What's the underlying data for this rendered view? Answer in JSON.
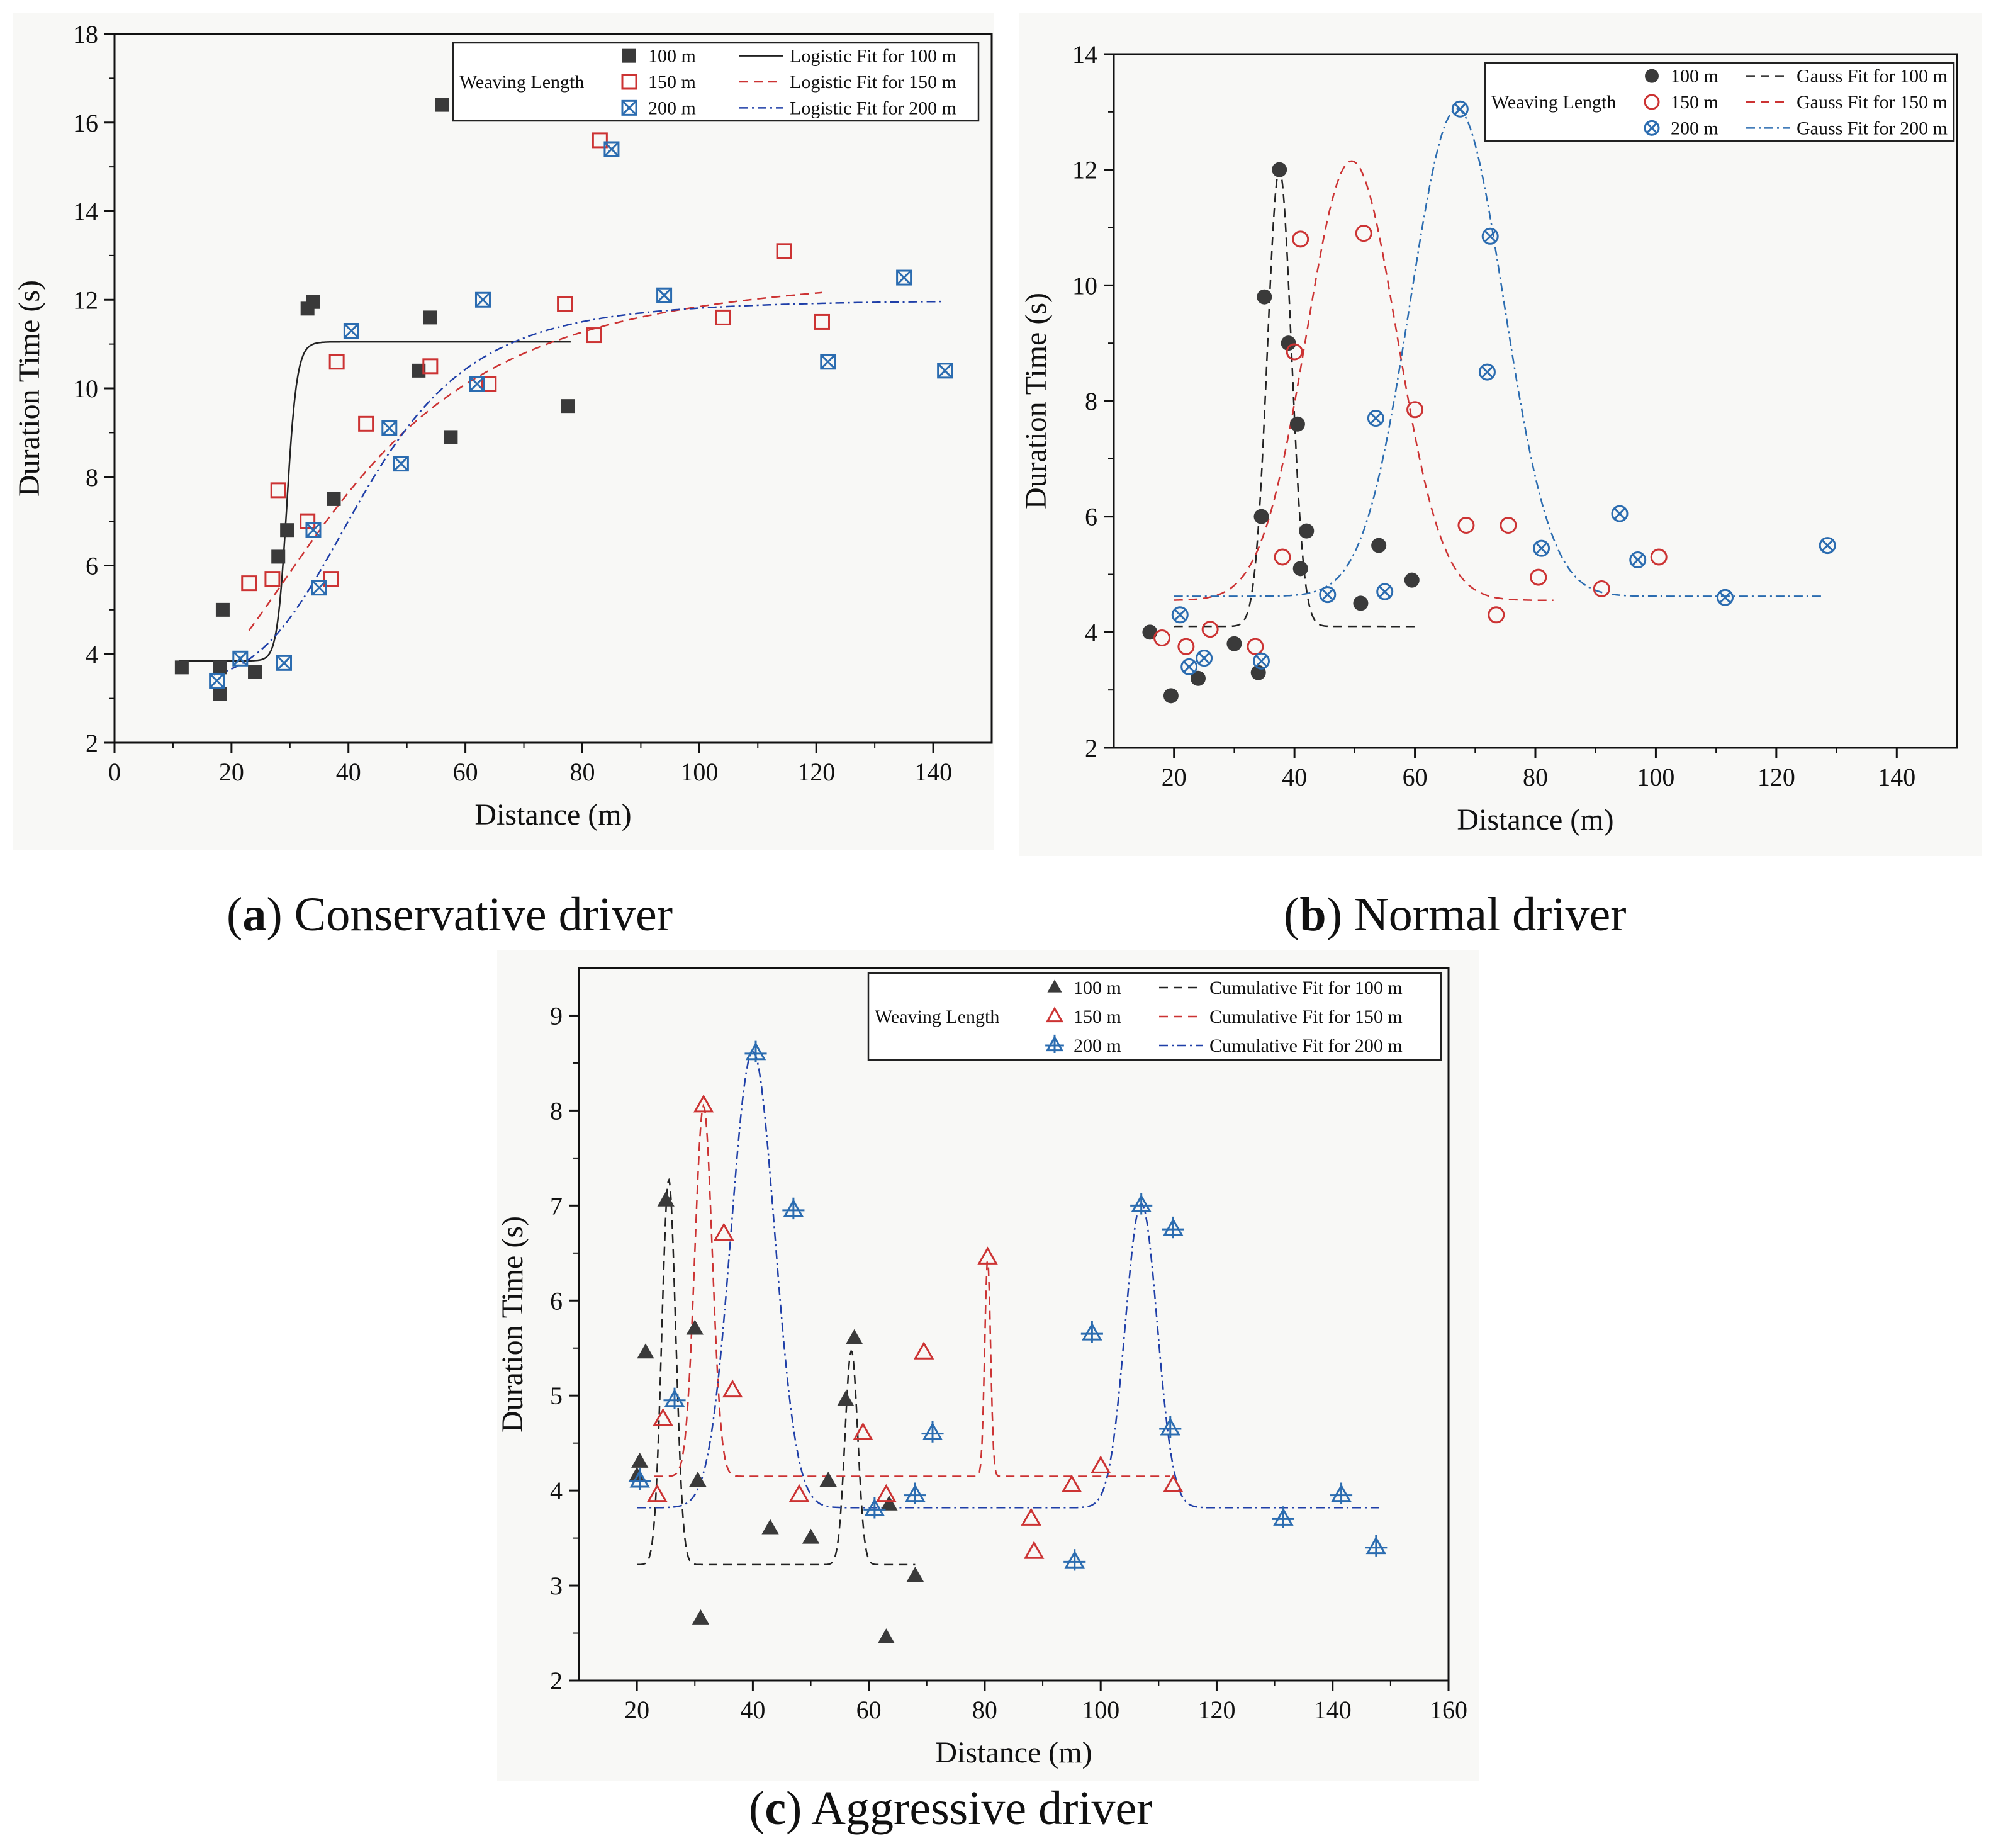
{
  "colors": {
    "s100": "#3a3a3a",
    "s150": "#cc3333",
    "s200": "#2b6cb0",
    "axis": "#111111"
  },
  "captions": [
    {
      "letter": "a",
      "text": "Conservative driver"
    },
    {
      "letter": "b",
      "text": "Normal driver"
    },
    {
      "letter": "c",
      "text": "Aggressive driver"
    }
  ],
  "chart_data": [
    {
      "type": "scatter",
      "title": "",
      "xlabel": "Distance (m)",
      "ylabel": "Duration Time (s)",
      "xlim": [
        0,
        150
      ],
      "ylim": [
        2,
        18
      ],
      "xticks": [
        0,
        20,
        40,
        60,
        80,
        100,
        120,
        140
      ],
      "yticks": [
        2,
        4,
        6,
        8,
        10,
        12,
        14,
        16,
        18
      ],
      "legend_title": "Weaving Length",
      "legend_position": "top-right",
      "series": [
        {
          "name": "100 m",
          "marker": "square-filled",
          "color": "#3a3a3a",
          "points": [
            [
              11.5,
              3.7
            ],
            [
              18,
              3.7
            ],
            [
              18.5,
              5.0
            ],
            [
              18,
              3.1
            ],
            [
              24,
              3.6
            ],
            [
              28,
              6.2
            ],
            [
              29.5,
              6.8
            ],
            [
              33,
              11.8
            ],
            [
              34,
              11.95
            ],
            [
              37.5,
              7.5
            ],
            [
              52,
              10.4
            ],
            [
              54,
              11.6
            ],
            [
              56,
              16.4
            ],
            [
              57.5,
              8.9
            ],
            [
              77.5,
              9.6
            ]
          ]
        },
        {
          "name": "150 m",
          "marker": "square-open",
          "color": "#cc3333",
          "points": [
            [
              23,
              5.6
            ],
            [
              27,
              5.7
            ],
            [
              28,
              7.7
            ],
            [
              33,
              7.0
            ],
            [
              37,
              5.7
            ],
            [
              38,
              10.6
            ],
            [
              43,
              9.2
            ],
            [
              54,
              10.5
            ],
            [
              64,
              10.1
            ],
            [
              77,
              11.9
            ],
            [
              82,
              11.2
            ],
            [
              83,
              15.6
            ],
            [
              104,
              11.6
            ],
            [
              114.5,
              13.1
            ],
            [
              121,
              11.5
            ]
          ]
        },
        {
          "name": "200 m",
          "marker": "square-x",
          "color": "#2b6cb0",
          "points": [
            [
              17.5,
              3.4
            ],
            [
              21.5,
              3.9
            ],
            [
              29,
              3.8
            ],
            [
              34,
              6.8
            ],
            [
              35,
              5.5
            ],
            [
              40.5,
              11.3
            ],
            [
              47,
              9.1
            ],
            [
              49,
              8.3
            ],
            [
              62,
              10.1
            ],
            [
              63,
              12.0
            ],
            [
              85,
              15.4
            ],
            [
              94,
              12.1
            ],
            [
              122,
              10.6
            ],
            [
              135,
              12.5
            ],
            [
              142,
              10.4
            ]
          ]
        }
      ],
      "fits": [
        {
          "name": "Logistic Fit for 100 m",
          "style": "solid",
          "color": "#222222",
          "model": "logistic",
          "A1": 3.85,
          "A2": 11.05,
          "x0": 29.5,
          "p": 35,
          "x_range": [
            11,
            78
          ]
        },
        {
          "name": "Logistic Fit for 150 m",
          "style": "dash",
          "color": "#cc3333",
          "model": "logistic",
          "A1": 2.6,
          "A2": 12.7,
          "x0": 40,
          "p": 2.6,
          "x_range": [
            23,
            121
          ]
        },
        {
          "name": "Logistic Fit for 200 m",
          "style": "dashdot",
          "color": "#1f3fa8",
          "model": "logistic",
          "A1": 3.4,
          "A2": 12.0,
          "x0": 43,
          "p": 4.5,
          "x_range": [
            17,
            142
          ]
        }
      ]
    },
    {
      "type": "scatter",
      "title": "",
      "xlabel": "Distance (m)",
      "ylabel": "Duration Time (s)",
      "xlim": [
        10,
        150
      ],
      "ylim": [
        2,
        14
      ],
      "xticks": [
        20,
        40,
        60,
        80,
        100,
        120,
        140
      ],
      "yticks": [
        2,
        4,
        6,
        8,
        10,
        12,
        14
      ],
      "legend_title": "Weaving Length",
      "legend_position": "top-right",
      "series": [
        {
          "name": "100 m",
          "marker": "circle-filled",
          "color": "#3a3a3a",
          "points": [
            [
              16,
              4.0
            ],
            [
              19.5,
              2.9
            ],
            [
              24,
              3.2
            ],
            [
              30,
              3.8
            ],
            [
              34,
              3.3
            ],
            [
              34.5,
              6.0
            ],
            [
              35,
              9.8
            ],
            [
              37.5,
              12.0
            ],
            [
              39,
              9.0
            ],
            [
              40.5,
              7.6
            ],
            [
              41,
              5.1
            ],
            [
              42,
              5.75
            ],
            [
              51,
              4.5
            ],
            [
              54,
              5.5
            ],
            [
              59.5,
              4.9
            ]
          ]
        },
        {
          "name": "150 m",
          "marker": "circle-open",
          "color": "#cc3333",
          "points": [
            [
              18,
              3.9
            ],
            [
              22,
              3.75
            ],
            [
              26,
              4.05
            ],
            [
              33.5,
              3.75
            ],
            [
              38,
              5.3
            ],
            [
              40,
              8.85
            ],
            [
              41,
              10.8
            ],
            [
              51.5,
              10.9
            ],
            [
              60,
              7.85
            ],
            [
              68.5,
              5.85
            ],
            [
              73.5,
              4.3
            ],
            [
              75.5,
              5.85
            ],
            [
              80.5,
              4.95
            ],
            [
              91,
              4.75
            ],
            [
              100.5,
              5.3
            ]
          ]
        },
        {
          "name": "200 m",
          "marker": "circle-x",
          "color": "#2b6cb0",
          "points": [
            [
              21,
              4.3
            ],
            [
              22.5,
              3.4
            ],
            [
              25,
              3.55
            ],
            [
              34.5,
              3.5
            ],
            [
              45.5,
              4.65
            ],
            [
              53.5,
              7.7
            ],
            [
              55,
              4.7
            ],
            [
              67.5,
              13.05
            ],
            [
              72,
              8.5
            ],
            [
              72.5,
              10.85
            ],
            [
              81,
              5.45
            ],
            [
              94,
              6.05
            ],
            [
              97,
              5.25
            ],
            [
              111.5,
              4.6
            ],
            [
              128.5,
              5.5
            ]
          ]
        }
      ],
      "fits": [
        {
          "name": "Gauss Fit for 100 m",
          "style": "dash",
          "color": "#222222",
          "model": "gauss",
          "y0": 4.1,
          "A": 7.9,
          "xc": 37.5,
          "w": 4.0,
          "x_range": [
            20,
            60
          ]
        },
        {
          "name": "Gauss Fit for 150 m",
          "style": "dash",
          "color": "#cc3333",
          "model": "gauss",
          "y0": 4.55,
          "A": 7.6,
          "xc": 49.5,
          "w": 15.0,
          "x_range": [
            20,
            83
          ]
        },
        {
          "name": "Gauss Fit for 200 m",
          "style": "dashdot",
          "color": "#2b6cb0",
          "model": "gauss",
          "y0": 4.62,
          "A": 8.43,
          "xc": 67,
          "w": 15.5,
          "x_range": [
            20,
            128
          ]
        }
      ]
    },
    {
      "type": "scatter",
      "title": "",
      "xlabel": "Distance (m)",
      "ylabel": "Duration Time (s)",
      "xlim": [
        10,
        160
      ],
      "ylim": [
        2,
        9.5
      ],
      "xticks": [
        20,
        40,
        60,
        80,
        100,
        120,
        140,
        160
      ],
      "yticks": [
        2,
        3,
        4,
        5,
        6,
        7,
        8,
        9
      ],
      "legend_title": "Weaving Length",
      "legend_position": "top-right",
      "series": [
        {
          "name": "100 m",
          "marker": "triangle-filled",
          "color": "#3a3a3a",
          "points": [
            [
              20,
              4.15
            ],
            [
              20.5,
              4.3
            ],
            [
              21.5,
              5.45
            ],
            [
              25,
              7.05
            ],
            [
              30,
              5.7
            ],
            [
              30.5,
              4.1
            ],
            [
              31,
              2.65
            ],
            [
              43,
              3.6
            ],
            [
              50,
              3.5
            ],
            [
              53,
              4.1
            ],
            [
              56,
              4.95
            ],
            [
              57.5,
              5.6
            ],
            [
              63,
              2.45
            ],
            [
              63.5,
              3.85
            ],
            [
              68,
              3.1
            ]
          ]
        },
        {
          "name": "150 m",
          "marker": "triangle-open",
          "color": "#cc3333",
          "points": [
            [
              23.5,
              3.95
            ],
            [
              24.5,
              4.75
            ],
            [
              31.5,
              8.05
            ],
            [
              35,
              6.7
            ],
            [
              36.5,
              5.05
            ],
            [
              48,
              3.95
            ],
            [
              59,
              4.6
            ],
            [
              63,
              3.95
            ],
            [
              69.5,
              5.45
            ],
            [
              80.5,
              6.45
            ],
            [
              88,
              3.7
            ],
            [
              88.5,
              3.35
            ],
            [
              95,
              4.05
            ],
            [
              100,
              4.25
            ],
            [
              112.5,
              4.05
            ]
          ]
        },
        {
          "name": "200 m",
          "marker": "triangle-cross",
          "color": "#2b6cb0",
          "points": [
            [
              20.5,
              4.1
            ],
            [
              26.5,
              4.95
            ],
            [
              40.5,
              8.6
            ],
            [
              47,
              6.95
            ],
            [
              61,
              3.8
            ],
            [
              68,
              3.95
            ],
            [
              71,
              4.6
            ],
            [
              95.5,
              3.25
            ],
            [
              98.5,
              5.65
            ],
            [
              107,
              7.0
            ],
            [
              112,
              4.65
            ],
            [
              112.5,
              6.75
            ],
            [
              131.5,
              3.7
            ],
            [
              141.5,
              3.95
            ],
            [
              147.5,
              3.4
            ]
          ]
        }
      ],
      "fits": [
        {
          "name": "Cumulative Fit for 100 m",
          "style": "dash",
          "color": "#222222",
          "model": "multigauss",
          "y0": 3.22,
          "peaks": [
            {
              "xc": 25.5,
              "A": 4.05,
              "w": 2.4
            },
            {
              "xc": 57,
              "A": 2.25,
              "w": 2.2
            }
          ],
          "x_range": [
            20,
            68
          ]
        },
        {
          "name": "Cumulative Fit for 150 m",
          "style": "dash",
          "color": "#cc3333",
          "model": "multigauss",
          "y0": 4.15,
          "peaks": [
            {
              "xc": 31.5,
              "A": 3.9,
              "w": 3.0
            },
            {
              "xc": 80.5,
              "A": 2.3,
              "w": 1.0
            }
          ],
          "x_range": [
            23,
            112
          ]
        },
        {
          "name": "Cumulative Fit for 200 m",
          "style": "dashdot",
          "color": "#1f3fa8",
          "model": "multigauss",
          "y0": 3.82,
          "peaks": [
            {
              "xc": 40,
              "A": 4.8,
              "w": 7.5
            },
            {
              "xc": 107,
              "A": 3.2,
              "w": 5.5
            }
          ],
          "x_range": [
            20,
            148
          ]
        }
      ]
    }
  ]
}
